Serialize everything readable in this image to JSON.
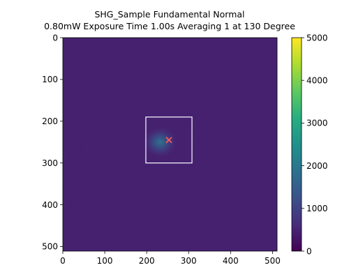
{
  "chart_data": {
    "type": "heatmap",
    "title_lines": [
      "SHG_Sample Fundamental Normal",
      "0.80mW Exposure Time 1.00s Averaging  1 at 130 Degree"
    ],
    "xlabel": "",
    "ylabel": "",
    "xlim": [
      0,
      511
    ],
    "ylim": [
      511,
      0
    ],
    "x_ticks": [
      0,
      100,
      200,
      300,
      400,
      500
    ],
    "y_ticks": [
      0,
      100,
      200,
      300,
      400,
      500
    ],
    "background_value": 450,
    "hotspot": {
      "x": 232,
      "y": 250,
      "peak_value": 2000
    },
    "roi_box": {
      "x0": 198,
      "x1": 308,
      "y0": 190,
      "y1": 300,
      "color": "#ffffff"
    },
    "marker": {
      "x": 253,
      "y": 245,
      "symbol": "x",
      "color": "#ff5a5a"
    },
    "colorbar": {
      "colormap": "viridis",
      "vmin": 0,
      "vmax": 5000,
      "ticks": [
        0,
        1000,
        2000,
        3000,
        4000,
        5000
      ],
      "tick_labels": [
        "0",
        "1000",
        "2000",
        "3000",
        "4000",
        "5000"
      ]
    }
  }
}
